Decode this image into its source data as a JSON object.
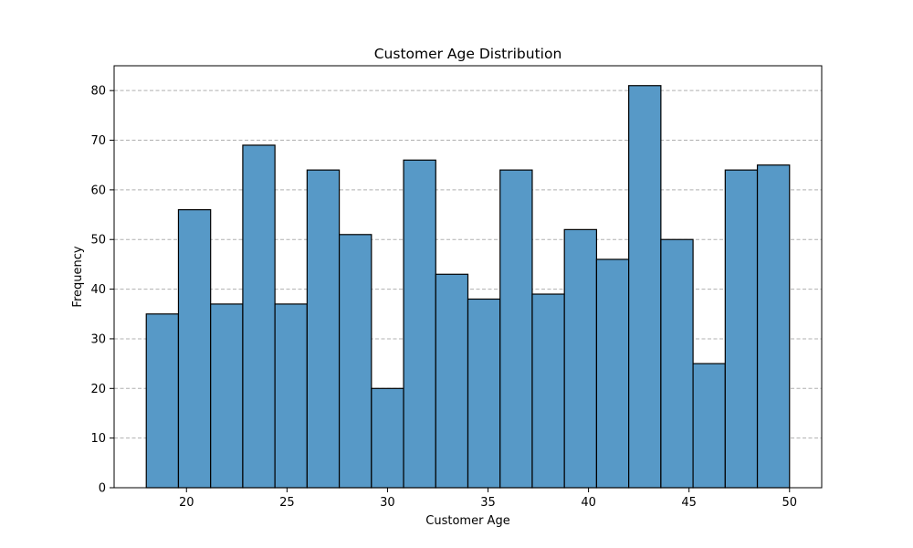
{
  "chart_data": {
    "type": "bar",
    "title": "Customer Age Distribution",
    "xlabel": "Customer Age",
    "ylabel": "Frequency",
    "xlim": [
      16.4,
      51.6
    ],
    "ylim": [
      0,
      85
    ],
    "xticks": [
      20,
      25,
      30,
      35,
      40,
      45,
      50
    ],
    "yticks": [
      0,
      10,
      20,
      30,
      40,
      50,
      60,
      70,
      80
    ],
    "grid": "y-dashed",
    "bar_color": "#5799c7",
    "edge_color": "#000000",
    "bins": [
      {
        "start": 18.0,
        "end": 19.6,
        "value": 35
      },
      {
        "start": 19.6,
        "end": 21.2,
        "value": 56
      },
      {
        "start": 21.2,
        "end": 22.8,
        "value": 37
      },
      {
        "start": 22.8,
        "end": 24.4,
        "value": 69
      },
      {
        "start": 24.4,
        "end": 26.0,
        "value": 37
      },
      {
        "start": 26.0,
        "end": 27.6,
        "value": 64
      },
      {
        "start": 27.6,
        "end": 29.2,
        "value": 51
      },
      {
        "start": 29.2,
        "end": 30.8,
        "value": 20
      },
      {
        "start": 30.8,
        "end": 32.4,
        "value": 66
      },
      {
        "start": 32.4,
        "end": 34.0,
        "value": 43
      },
      {
        "start": 34.0,
        "end": 35.6,
        "value": 38
      },
      {
        "start": 35.6,
        "end": 37.2,
        "value": 64
      },
      {
        "start": 37.2,
        "end": 38.8,
        "value": 39
      },
      {
        "start": 38.8,
        "end": 40.4,
        "value": 52
      },
      {
        "start": 40.4,
        "end": 42.0,
        "value": 46
      },
      {
        "start": 42.0,
        "end": 43.6,
        "value": 81
      },
      {
        "start": 43.6,
        "end": 45.2,
        "value": 50
      },
      {
        "start": 45.2,
        "end": 46.8,
        "value": 25
      },
      {
        "start": 46.8,
        "end": 48.4,
        "value": 64
      },
      {
        "start": 48.4,
        "end": 50.0,
        "value": 65
      }
    ]
  }
}
